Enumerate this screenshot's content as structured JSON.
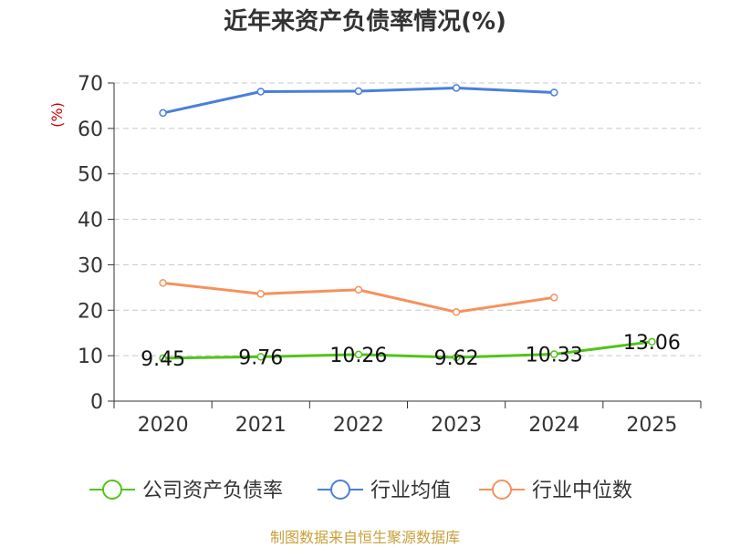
{
  "chart_data": {
    "type": "line",
    "title": "近年来资产负债率情况(%)",
    "ylabel": "(%)",
    "ylim": [
      0,
      70
    ],
    "yticks": [
      0,
      10,
      20,
      30,
      40,
      50,
      60,
      70
    ],
    "categories": [
      "2020",
      "2021",
      "2022",
      "2023",
      "2024",
      "2025"
    ],
    "grid": true,
    "legend_position": "bottom",
    "series": [
      {
        "name": "公司资产负债率",
        "color": "#52c41a",
        "values": [
          9.45,
          9.76,
          10.26,
          9.62,
          10.33,
          13.06
        ],
        "labels": [
          "9.45",
          "9.76",
          "10.26",
          "9.62",
          "10.33",
          "13.06"
        ]
      },
      {
        "name": "行业均值",
        "color": "#4a7fd9",
        "values": [
          63.4,
          68.1,
          68.2,
          68.9,
          67.9,
          null
        ]
      },
      {
        "name": "行业中位数",
        "color": "#f5915c",
        "values": [
          26.0,
          23.6,
          24.5,
          19.6,
          22.8,
          null
        ]
      }
    ],
    "source": "制图数据来自恒生聚源数据库"
  }
}
